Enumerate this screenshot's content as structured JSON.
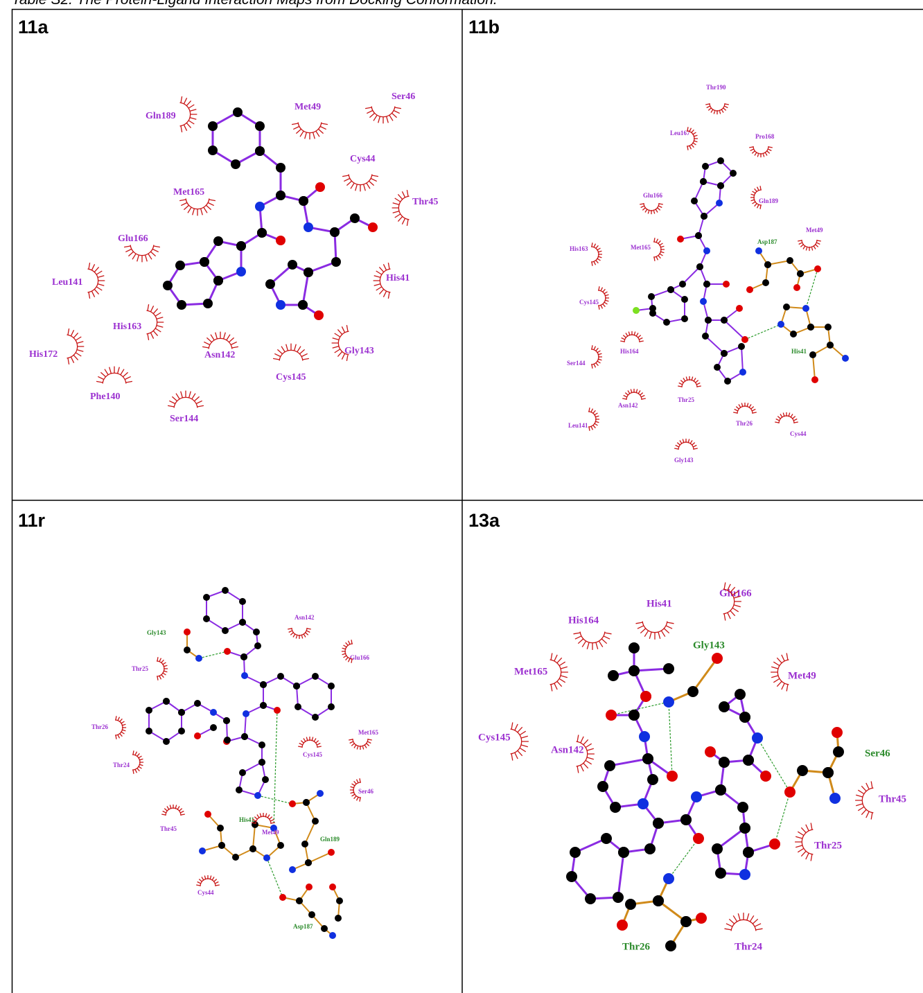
{
  "title": "Table S2. The Protein-Ligand Interaction Maps from Docking Conformation.",
  "panels": [
    {
      "label": "11a",
      "residues": [
        "Gln189",
        "Met49",
        "Ser46",
        "Cys44",
        "Met165",
        "Thr45",
        "Glu166",
        "Leu141",
        "His41",
        "His163",
        "Gly143",
        "His172",
        "Asn142",
        "Cys145",
        "Phe140",
        "Ser144"
      ]
    },
    {
      "label": "11b",
      "residues": [
        "Thr190",
        "Leu167",
        "Pro168",
        "Glu166",
        "Gln189",
        "Met49",
        "Asp187",
        "His163",
        "Met165",
        "Cys145",
        "His41",
        "His164",
        "Ser144",
        "Asn142",
        "Thr25",
        "Leu141",
        "Thr26",
        "Cys44",
        "Gly143"
      ]
    },
    {
      "label": "11r",
      "residues": [
        "Gly143",
        "Asn142",
        "Glu166",
        "Thr25",
        "Thr26",
        "Met165",
        "Cys145",
        "Thr24",
        "Ser46",
        "His41",
        "Met49",
        "Gln189",
        "Thr45",
        "Cys44",
        "Asp187"
      ]
    },
    {
      "label": "13a",
      "residues": [
        "His41",
        "Glu166",
        "His164",
        "Gly143",
        "Met165",
        "Met49",
        "Cys145",
        "Asn142",
        "Ser46",
        "Thr45",
        "Thr25",
        "Thr26",
        "Thr24"
      ]
    }
  ]
}
